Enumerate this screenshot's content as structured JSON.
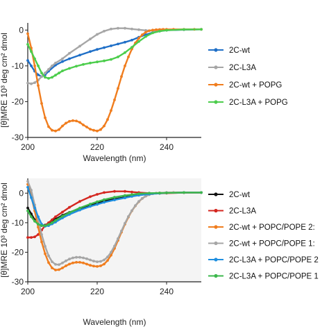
{
  "chart_data": [
    {
      "type": "line",
      "xlabel": "Wavelength (nm)",
      "ylabel": "[θ]MRE 10³ deg cm² dmol⁻¹",
      "ylabel_visible": "[θ]MRE 10³ deg cm² dmol",
      "xlim": [
        200,
        250
      ],
      "ylim": [
        -30,
        2
      ],
      "xticks": [
        "200",
        "220",
        "240"
      ],
      "yticks": [
        "0",
        "-10",
        "-20",
        "-30"
      ],
      "legend_placement": "right",
      "series": [
        {
          "name": "2C-wt",
          "color": "#1f6fc7",
          "marker": true,
          "x": [
            200,
            201,
            202,
            203,
            204,
            205,
            206,
            208,
            210,
            212,
            215,
            218,
            220,
            222,
            224,
            226,
            228,
            230,
            232,
            234,
            236,
            238,
            240,
            245,
            250
          ],
          "y": [
            -8.5,
            -10,
            -11.5,
            -12.5,
            -13,
            -12.5,
            -11.5,
            -9.8,
            -8.8,
            -8.0,
            -7.0,
            -6.0,
            -5.4,
            -4.9,
            -4.4,
            -3.9,
            -3.4,
            -2.8,
            -2.0,
            -1.3,
            -0.7,
            -0.3,
            -0.05,
            0.1,
            0.2
          ]
        },
        {
          "name": "2C-L3A",
          "color": "#a6a6a6",
          "marker": true,
          "x": [
            200,
            201,
            202,
            203,
            204,
            205,
            206,
            207,
            208,
            210,
            212,
            215,
            218,
            220,
            222,
            224,
            226,
            228,
            230,
            232,
            234,
            236,
            238,
            240,
            245,
            250
          ],
          "y": [
            -14.8,
            -15,
            -14.7,
            -14,
            -13,
            -12,
            -11,
            -10,
            -9.2,
            -8,
            -6.5,
            -4.5,
            -2.5,
            -1.2,
            -0.3,
            0.3,
            0.5,
            0.5,
            0.3,
            0.1,
            -0.1,
            -0.15,
            -0.1,
            0,
            0.15,
            0.2
          ]
        },
        {
          "name": "2C-wt + POPG",
          "color": "#f07d1e",
          "marker": true,
          "x": [
            200,
            201,
            202,
            203,
            204,
            205,
            206,
            207,
            208,
            209,
            210,
            211,
            212,
            213,
            214,
            215,
            216,
            217,
            218,
            219,
            220,
            221,
            222,
            223,
            224,
            225,
            226,
            227,
            228,
            229,
            230,
            231,
            232,
            233,
            234,
            235,
            236,
            237,
            238,
            239,
            240,
            242,
            245,
            248,
            250
          ],
          "y": [
            -1,
            -5,
            -10,
            -15.5,
            -20.5,
            -24.5,
            -27,
            -28,
            -28.2,
            -27.8,
            -26.8,
            -26,
            -25.5,
            -25.3,
            -25.4,
            -25.8,
            -26.5,
            -27.1,
            -27.7,
            -28,
            -28.2,
            -27.8,
            -26.8,
            -25,
            -22.5,
            -19.5,
            -16.3,
            -13,
            -10,
            -7.5,
            -5.3,
            -3.6,
            -2.3,
            -1.3,
            -0.6,
            -0.2,
            0,
            0.1,
            0.15,
            0.2,
            0.2,
            0.2,
            0.2,
            0.2,
            0.2
          ]
        },
        {
          "name": "2C-L3A + POPG",
          "color": "#4ccd4c",
          "marker": true,
          "x": [
            200,
            201,
            202,
            203,
            204,
            205,
            206,
            207,
            208,
            209,
            210,
            212,
            214,
            216,
            218,
            220,
            222,
            224,
            226,
            228,
            230,
            232,
            234,
            236,
            238,
            240,
            245,
            250
          ],
          "y": [
            -4,
            -6,
            -8,
            -10,
            -12,
            -13.2,
            -13.5,
            -13.2,
            -12.6,
            -12,
            -11.4,
            -10.7,
            -10.1,
            -9.6,
            -9.2,
            -8.9,
            -8.6,
            -8.2,
            -7.5,
            -6.3,
            -4.8,
            -3.2,
            -1.8,
            -0.8,
            -0.3,
            -0.05,
            0.15,
            0.2
          ]
        }
      ]
    },
    {
      "type": "line",
      "xlabel": "Wavelength (nm)",
      "ylabel": "[θ]MRE 10³ deg cm² dmol⁻¹",
      "ylabel_visible": "[θ]MRE 10³ deg cm² dmol",
      "xlim": [
        200,
        250
      ],
      "ylim": [
        -30,
        5
      ],
      "xticks": [
        "200",
        "220",
        "240"
      ],
      "yticks": [
        "0",
        "-10",
        "-20",
        "-30"
      ],
      "legend_placement": "right",
      "series": [
        {
          "name": "2C-wt",
          "color": "#111111",
          "marker": true,
          "x": [
            200,
            201,
            202,
            203,
            204,
            205,
            206,
            208,
            210,
            212,
            215,
            218,
            220,
            222,
            225,
            228,
            230,
            232,
            235,
            238,
            240,
            245,
            250
          ],
          "y": [
            -5,
            -7,
            -9,
            -10.5,
            -11,
            -10.8,
            -10.2,
            -8.8,
            -7.5,
            -6.5,
            -5.2,
            -4,
            -3.3,
            -2.7,
            -2,
            -1.4,
            -1,
            -0.6,
            -0.2,
            0,
            0.1,
            0.2,
            0.2
          ]
        },
        {
          "name": "2C-L3A",
          "color": "#d4261f",
          "marker": true,
          "x": [
            200,
            201,
            202,
            203,
            204,
            205,
            206,
            207,
            208,
            210,
            212,
            215,
            218,
            220,
            222,
            225,
            228,
            230,
            232,
            235,
            238,
            240,
            245,
            250
          ],
          "y": [
            -15,
            -15,
            -14.8,
            -14,
            -12.5,
            -11,
            -10,
            -9,
            -8,
            -6.4,
            -4.8,
            -2.8,
            -1.2,
            -0.4,
            0.2,
            0.6,
            0.6,
            0.4,
            0.2,
            0,
            -0.05,
            0,
            0.15,
            0.2
          ]
        },
        {
          "name": "2C-wt + POPC/POPE 2:",
          "color": "#f07d1e",
          "marker": true,
          "x": [
            200,
            201,
            202,
            203,
            204,
            205,
            206,
            207,
            208,
            209,
            210,
            211,
            212,
            213,
            214,
            215,
            216,
            217,
            218,
            219,
            220,
            221,
            222,
            223,
            224,
            225,
            226,
            227,
            228,
            229,
            230,
            231,
            232,
            233,
            234,
            235,
            236,
            237,
            238,
            240,
            242,
            245,
            250
          ],
          "y": [
            3,
            -1,
            -6,
            -11.5,
            -16.5,
            -20.5,
            -23.5,
            -25.3,
            -26,
            -25.9,
            -25.3,
            -24.6,
            -24,
            -23.6,
            -23.4,
            -23.4,
            -23.6,
            -24,
            -24.4,
            -24.7,
            -24.8,
            -24.6,
            -24,
            -22.8,
            -21,
            -18.7,
            -16,
            -13.2,
            -10.5,
            -8.1,
            -6,
            -4.3,
            -2.9,
            -1.8,
            -1,
            -0.5,
            -0.2,
            0,
            0.1,
            0.2,
            0.2,
            0.2,
            0.2
          ]
        },
        {
          "name": "2C-wt + POPC/POPE 1:",
          "color": "#a6a6a6",
          "marker": true,
          "x": [
            200,
            201,
            202,
            203,
            204,
            205,
            206,
            207,
            208,
            209,
            210,
            211,
            212,
            213,
            214,
            215,
            216,
            217,
            218,
            219,
            220,
            221,
            222,
            223,
            224,
            225,
            226,
            227,
            228,
            229,
            230,
            231,
            232,
            233,
            234,
            235,
            236,
            237,
            238,
            240,
            242,
            245,
            250
          ],
          "y": [
            4,
            1,
            -4,
            -9,
            -14,
            -18,
            -21.2,
            -23.2,
            -24.1,
            -24.2,
            -23.6,
            -22.9,
            -22.3,
            -21.9,
            -21.7,
            -21.7,
            -21.9,
            -22.2,
            -22.6,
            -23,
            -23.2,
            -23.1,
            -22.6,
            -21.6,
            -20,
            -17.9,
            -15.4,
            -12.8,
            -10.2,
            -7.9,
            -5.9,
            -4.2,
            -2.8,
            -1.8,
            -1,
            -0.5,
            -0.2,
            0,
            0.1,
            0.2,
            0.2,
            0.2,
            0.2
          ]
        },
        {
          "name": "2C-L3A + POPC/POPE 2",
          "color": "#1f8fe0",
          "marker": true,
          "x": [
            200,
            201,
            202,
            203,
            204,
            205,
            206,
            207,
            208,
            210,
            212,
            215,
            218,
            220,
            222,
            225,
            228,
            230,
            232,
            235,
            238,
            240,
            245,
            250
          ],
          "y": [
            2,
            -1.5,
            -5,
            -8,
            -10.5,
            -11.2,
            -11,
            -10.4,
            -9.8,
            -8.4,
            -7.2,
            -5.7,
            -4.5,
            -3.8,
            -3.1,
            -2.3,
            -1.6,
            -1.1,
            -0.7,
            -0.3,
            -0.05,
            0.1,
            0.2,
            0.2
          ]
        },
        {
          "name": "2C-L3A + POPC/POPE 1",
          "color": "#3cb84c",
          "marker": true,
          "x": [
            200,
            201,
            202,
            203,
            204,
            205,
            206,
            207,
            208,
            210,
            212,
            215,
            218,
            220,
            222,
            225,
            228,
            230,
            232,
            235,
            238,
            240,
            245,
            250
          ],
          "y": [
            -6,
            -8,
            -9.5,
            -10.5,
            -11,
            -11,
            -10.6,
            -10,
            -9.2,
            -7.8,
            -6.6,
            -5,
            -3.7,
            -2.9,
            -2.2,
            -1.4,
            -0.8,
            -0.5,
            -0.2,
            0,
            0.05,
            0.1,
            0.2,
            0.2
          ]
        }
      ]
    }
  ]
}
